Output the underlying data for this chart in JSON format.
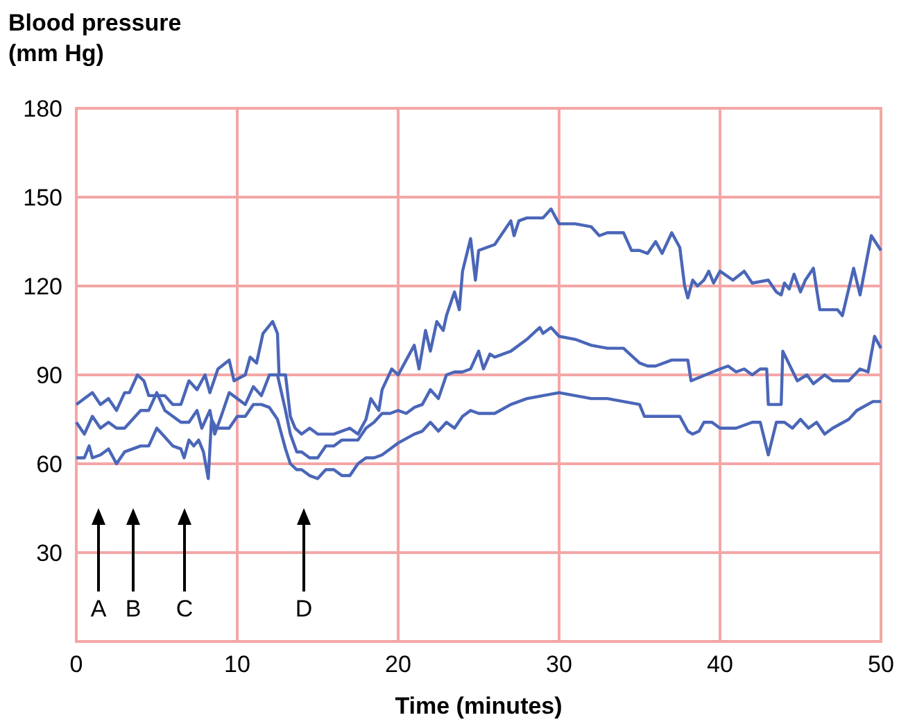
{
  "chart_data": {
    "type": "line",
    "ylabel": "Blood pressure\n(mm Hg)",
    "xlabel": "Time (minutes)",
    "xlim": [
      0,
      50
    ],
    "xticks": [
      0,
      10,
      20,
      30,
      40,
      50
    ],
    "ylim": [
      0,
      180
    ],
    "yticks": [
      {
        "value": 0,
        "label": null
      },
      30,
      60,
      90,
      120,
      150,
      180
    ],
    "grid": true,
    "series": [
      {
        "color": "#4a66b8",
        "x": [
          0,
          1,
          1.5,
          2,
          2.5,
          3,
          3.3,
          3.8,
          4.2,
          4.5,
          5.5,
          6,
          6.5,
          7,
          7.5,
          8,
          8.3,
          8.8,
          9.5,
          9.8,
          10.5,
          10.8,
          11.2,
          11.6,
          12.2,
          12.5,
          12.6,
          13,
          13.3,
          13.6,
          14,
          14.5,
          15,
          16,
          17,
          17.5,
          18,
          18.3,
          18.8,
          19,
          19.6,
          20,
          20.5,
          21,
          21.3,
          21.7,
          22,
          22.4,
          22.8,
          23,
          23.5,
          23.8,
          24,
          24.5,
          24.8,
          25,
          26,
          27,
          27.2,
          27.5,
          28,
          29,
          29.5,
          30,
          31,
          32,
          32.5,
          33,
          34,
          34.5,
          35,
          35.5,
          36,
          36.4,
          37,
          37.5,
          37.8,
          38,
          38.3,
          38.6,
          39,
          39.3,
          39.6,
          40,
          40.8,
          41.5,
          42,
          43,
          43.5,
          43.8,
          44,
          44.3,
          44.6,
          45,
          45.3,
          45.8,
          46.2,
          47.3,
          47.6,
          48.3,
          48.7,
          49.4,
          50
        ],
        "values": [
          80,
          84,
          80,
          82,
          78,
          84,
          84,
          90,
          88,
          83,
          83,
          80,
          80,
          88,
          85,
          90,
          84,
          92,
          95,
          88,
          90,
          96,
          94,
          104,
          108,
          104,
          90,
          90,
          76,
          72,
          70,
          72,
          70,
          70,
          72,
          70,
          75,
          82,
          78,
          85,
          92,
          90,
          95,
          100,
          92,
          105,
          98,
          108,
          105,
          110,
          118,
          112,
          125,
          136,
          122,
          132,
          134,
          142,
          137,
          142,
          143,
          143,
          146,
          141,
          141,
          140,
          137,
          138,
          138,
          132,
          132,
          131,
          135,
          131,
          138,
          133,
          120,
          116,
          122,
          120,
          122,
          125,
          121,
          125,
          122,
          125,
          121,
          122,
          118,
          117,
          121,
          119,
          124,
          118,
          122,
          126,
          112,
          112,
          110,
          126,
          117,
          137,
          132
        ]
      },
      {
        "color": "#4a66b8",
        "x": [
          0,
          0.5,
          1,
          1.5,
          2,
          2.5,
          3,
          3.5,
          4,
          4.5,
          5,
          5.5,
          6,
          6.5,
          7,
          7.5,
          7.8,
          8.3,
          8.6,
          9,
          9.5,
          10,
          10.5,
          11,
          11.5,
          12,
          12.5,
          13,
          13.3,
          13.7,
          14,
          14.5,
          15,
          15.5,
          16,
          16.5,
          17,
          17.5,
          18,
          18.5,
          19,
          19.5,
          20,
          20.5,
          21,
          21.5,
          22,
          22.5,
          23,
          23.5,
          24,
          24.5,
          25,
          25.3,
          25.7,
          26,
          27,
          28,
          28.8,
          29,
          29.5,
          30,
          31,
          32,
          33,
          34,
          35,
          35.5,
          36,
          37,
          38,
          38.2,
          40,
          40.5,
          41,
          41.5,
          42,
          42.5,
          42.9,
          43,
          43.8,
          43.9,
          44.8,
          45.4,
          45.8,
          46.5,
          47,
          48,
          48.7,
          49.2,
          49.6,
          50
        ],
        "values": [
          74,
          70,
          76,
          72,
          74,
          72,
          72,
          75,
          78,
          78,
          84,
          78,
          76,
          74,
          74,
          78,
          72,
          78,
          70,
          76,
          84,
          82,
          80,
          86,
          83,
          90,
          90,
          78,
          70,
          64,
          64,
          62,
          62,
          66,
          66,
          68,
          68,
          68,
          72,
          74,
          77,
          77,
          78,
          77,
          79,
          80,
          85,
          82,
          90,
          91,
          91,
          92,
          98,
          92,
          97,
          96,
          98,
          102,
          106,
          104,
          106,
          103,
          102,
          100,
          99,
          99,
          94,
          93,
          93,
          95,
          95,
          88,
          92,
          93,
          91,
          92,
          90,
          92,
          92,
          80,
          80,
          98,
          88,
          90,
          87,
          90,
          88,
          88,
          92,
          91,
          103,
          99
        ]
      },
      {
        "color": "#4a66b8",
        "x": [
          0,
          0.5,
          0.8,
          1,
          1.5,
          2,
          2.5,
          3,
          4,
          4.5,
          5,
          5.5,
          6,
          6.5,
          6.7,
          7,
          7.3,
          7.6,
          7.9,
          8.2,
          8.4,
          8.7,
          9.5,
          10,
          10.5,
          11,
          11.5,
          12,
          12.5,
          13,
          13.3,
          13.7,
          14,
          14.5,
          15,
          15.5,
          16,
          16.5,
          17,
          17.5,
          18,
          18.5,
          19,
          19.5,
          20,
          21,
          21.5,
          22,
          22.5,
          23,
          23.5,
          24,
          24.5,
          25,
          26,
          27,
          28,
          29,
          30,
          31,
          32,
          33,
          34,
          35,
          35.3,
          36,
          37,
          37.5,
          38,
          38.3,
          38.7,
          39,
          39.5,
          40,
          41,
          42,
          42.5,
          43,
          43.5,
          44,
          44.5,
          45,
          45.5,
          46,
          46.5,
          47,
          48,
          48.5,
          49.5,
          50
        ],
        "values": [
          62,
          62,
          66,
          62,
          63,
          65,
          60,
          64,
          66,
          66,
          72,
          69,
          66,
          65,
          62,
          68,
          66,
          68,
          64,
          55,
          75,
          72,
          72,
          76,
          76,
          80,
          80,
          79,
          75,
          65,
          60,
          58,
          58,
          56,
          55,
          58,
          58,
          56,
          56,
          60,
          62,
          62,
          63,
          65,
          67,
          70,
          71,
          74,
          71,
          74,
          72,
          76,
          78,
          77,
          77,
          80,
          82,
          83,
          84,
          83,
          82,
          82,
          81,
          80,
          76,
          76,
          76,
          76,
          71,
          70,
          71,
          74,
          74,
          72,
          72,
          74,
          74,
          63,
          74,
          74,
          72,
          75,
          72,
          74,
          70,
          72,
          75,
          78,
          81,
          81
        ]
      }
    ],
    "annotations": [
      "A",
      "B",
      "C",
      "D"
    ]
  }
}
